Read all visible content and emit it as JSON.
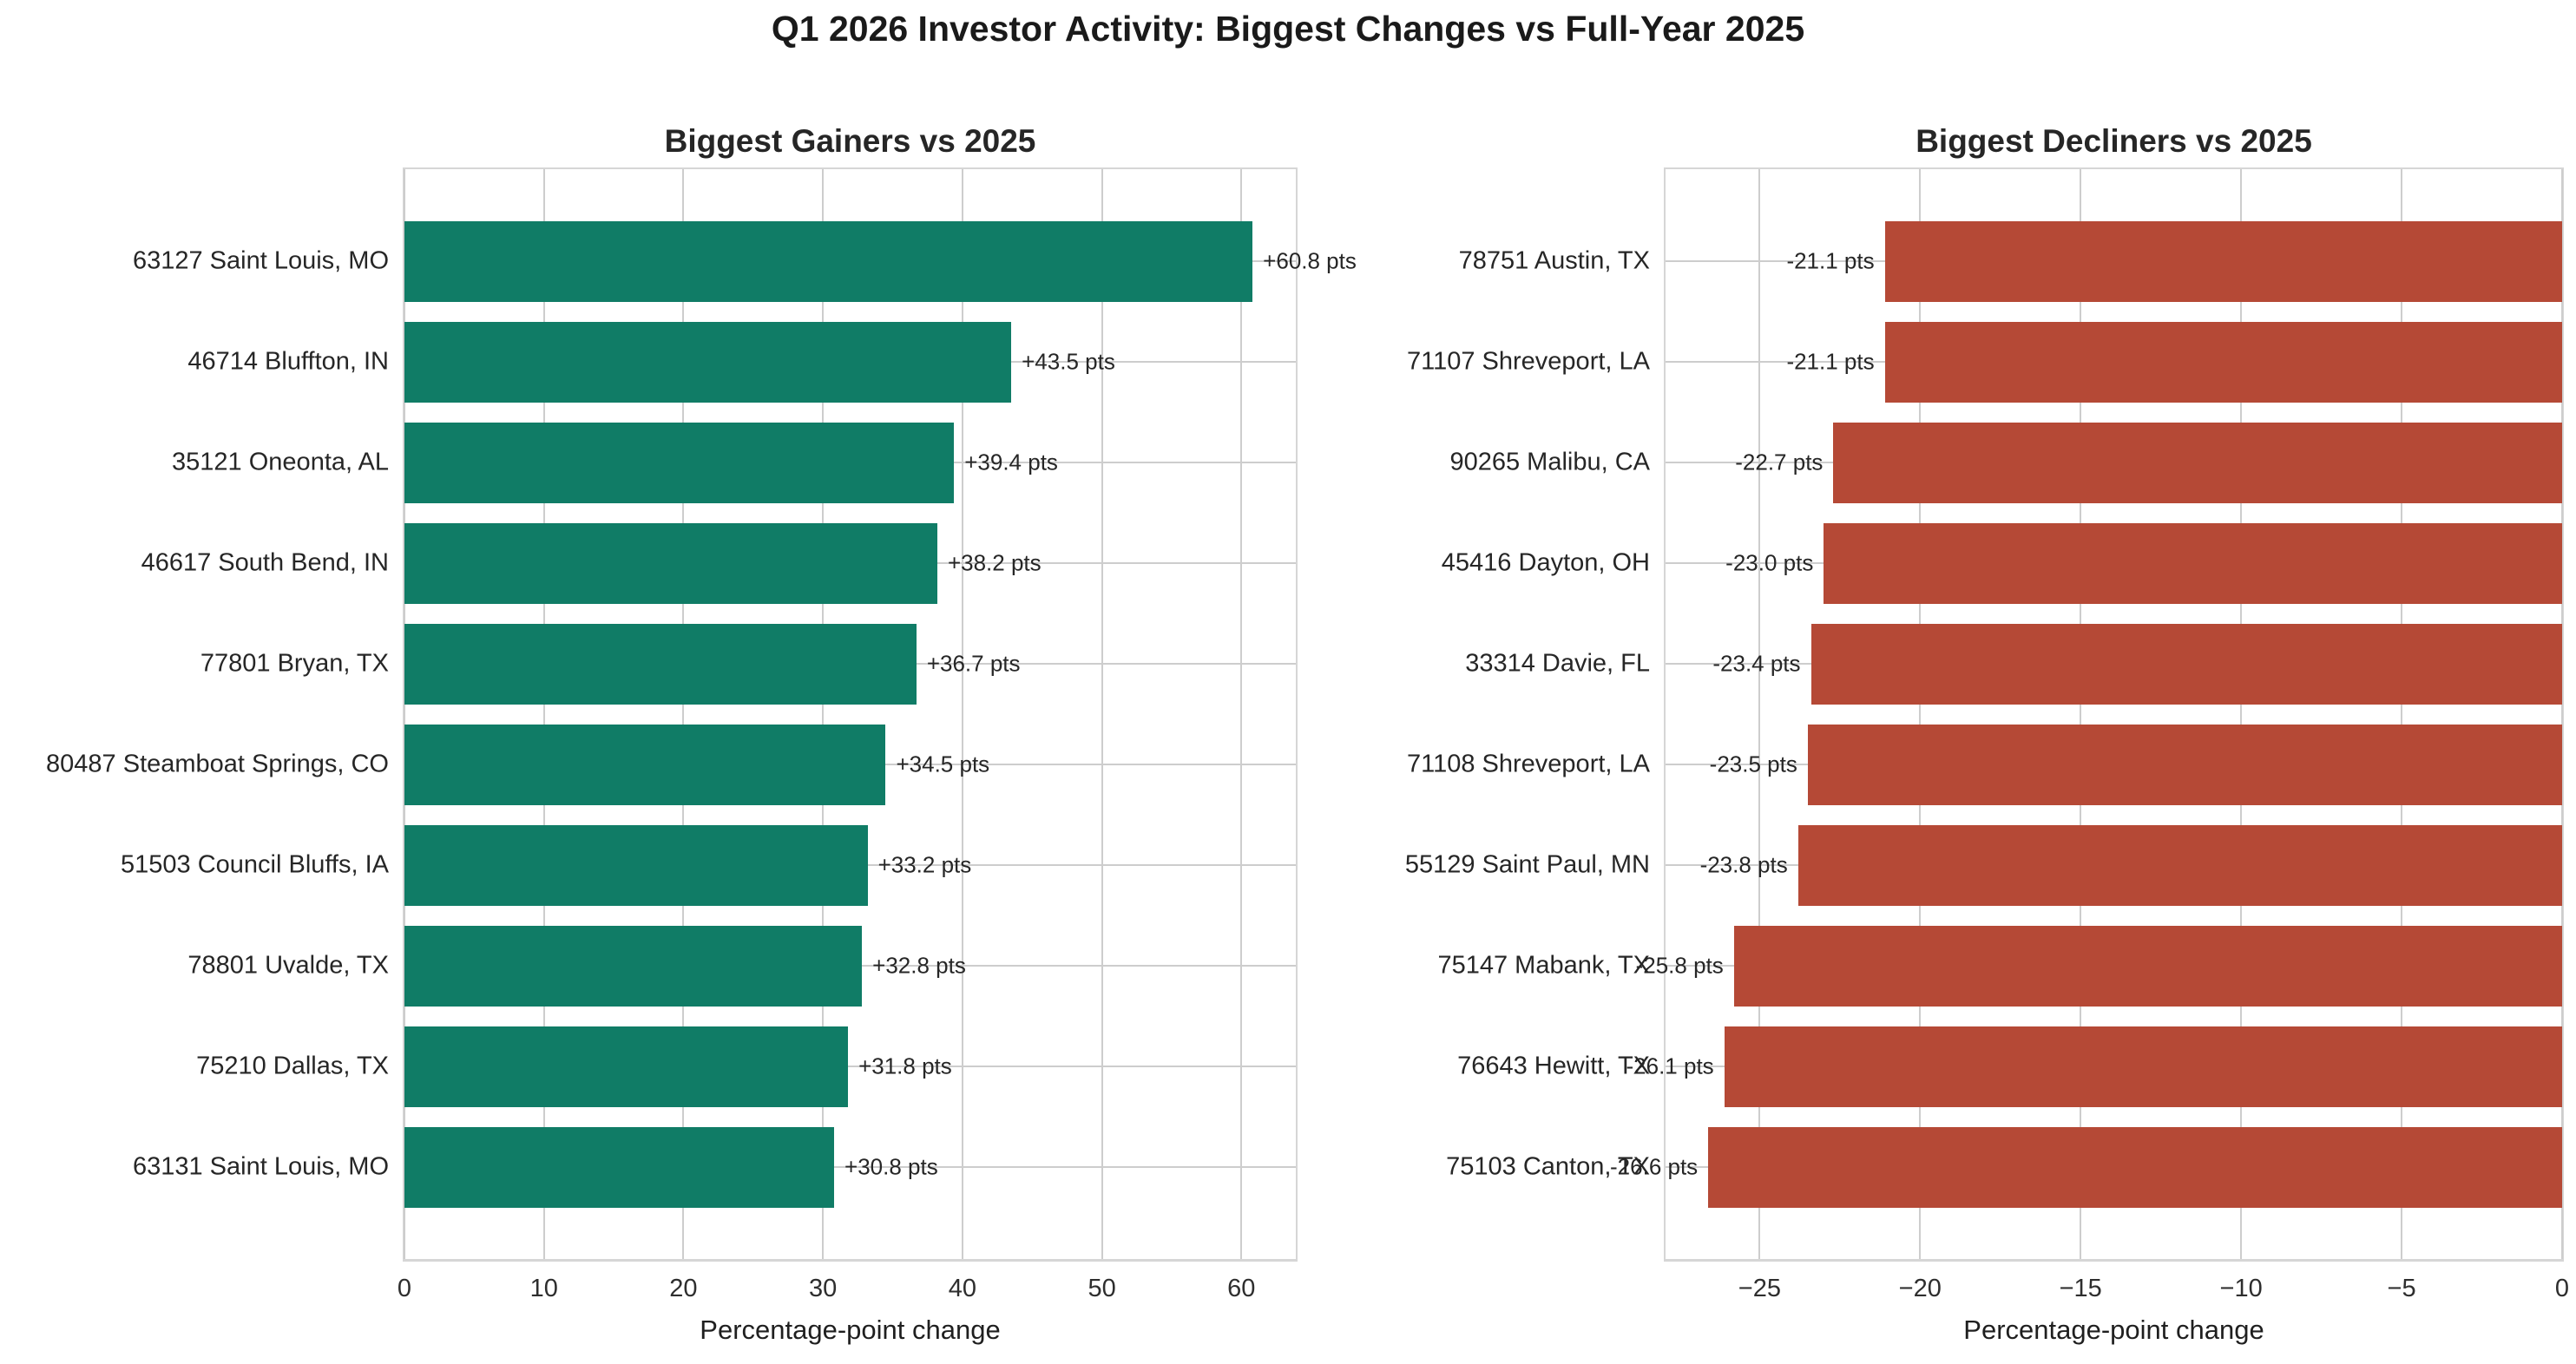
{
  "figure": {
    "title": "Q1 2026 Investor Activity: Biggest Changes vs Full-Year 2025",
    "background": "#ffffff",
    "grid_color": "#cdcdcd"
  },
  "chart_data": [
    {
      "type": "bar",
      "orientation": "horizontal",
      "title": "Biggest Gainers vs 2025",
      "xlabel": "Percentage-point change",
      "bar_color": "#107C66",
      "legend": "none",
      "grid": true,
      "categories": [
        "63127 Saint Louis, MO",
        "46714 Bluffton, IN",
        "35121 Oneonta, AL",
        "46617 South Bend, IN",
        "77801 Bryan, TX",
        "80487 Steamboat Springs, CO",
        "51503 Council Bluffs, IA",
        "78801 Uvalde, TX",
        "75210 Dallas, TX",
        "63131 Saint Louis, MO"
      ],
      "values": [
        60.8,
        43.5,
        39.4,
        38.2,
        36.7,
        34.5,
        33.2,
        32.8,
        31.8,
        30.8
      ],
      "value_labels": [
        "+60.8 pts",
        "+43.5 pts",
        "+39.4 pts",
        "+38.2 pts",
        "+36.7 pts",
        "+34.5 pts",
        "+33.2 pts",
        "+32.8 pts",
        "+31.8 pts",
        "+30.8 pts"
      ],
      "xlim": [
        0,
        63.9
      ],
      "xtick_values": [
        0,
        10,
        20,
        30,
        40,
        50,
        60
      ],
      "xtick_labels": [
        "0",
        "10",
        "20",
        "30",
        "40",
        "50",
        "60"
      ]
    },
    {
      "type": "bar",
      "orientation": "horizontal",
      "title": "Biggest Decliners vs 2025",
      "xlabel": "Percentage-point change",
      "bar_color": "#B54936",
      "legend": "none",
      "grid": true,
      "categories": [
        "78751 Austin, TX",
        "71107 Shreveport, LA",
        "90265 Malibu, CA",
        "45416 Dayton, OH",
        "33314 Davie, FL",
        "71108 Shreveport, LA",
        "55129 Saint Paul, MN",
        "75147 Mabank, TX",
        "76643 Hewitt, TX",
        "75103 Canton, TX"
      ],
      "values": [
        -21.1,
        -21.1,
        -22.7,
        -23.0,
        -23.4,
        -23.5,
        -23.8,
        -25.8,
        -26.1,
        -26.6
      ],
      "value_labels": [
        "-21.1 pts",
        "-21.1 pts",
        "-22.7 pts",
        "-23.0 pts",
        "-23.4 pts",
        "-23.5 pts",
        "-23.8 pts",
        "-25.8 pts",
        "-26.1 pts",
        "-26.6 pts"
      ],
      "xlim": [
        -27.93,
        0
      ],
      "xtick_values": [
        -25,
        -20,
        -15,
        -10,
        -5,
        0
      ],
      "xtick_labels": [
        "−25",
        "−20",
        "−15",
        "−10",
        "−5",
        "0"
      ]
    }
  ]
}
